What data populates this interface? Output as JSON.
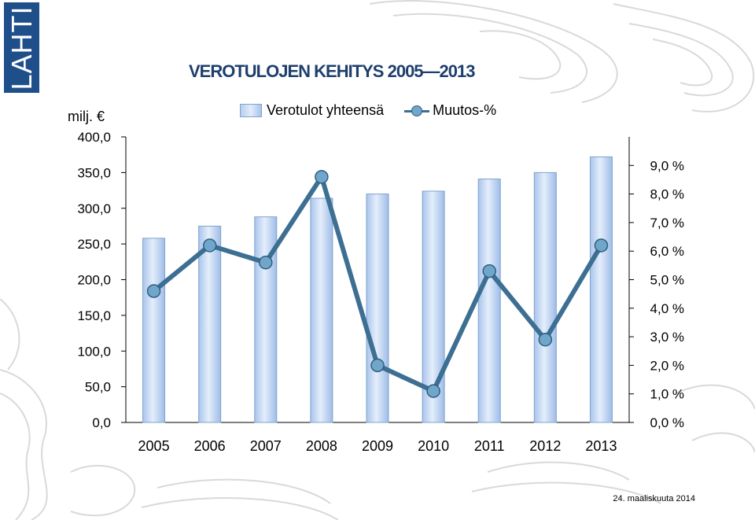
{
  "logo": {
    "text": "LAHTI"
  },
  "title": "VEROTULOJEN KEHITYS 2005—2013",
  "unit_label": "milj. €",
  "footer": {
    "date": "24. maaliskuuta 2014"
  },
  "chart_data": {
    "type": "bar",
    "categories": [
      "2005",
      "2006",
      "2007",
      "2008",
      "2009",
      "2010",
      "2011",
      "2012",
      "2013"
    ],
    "series": [
      {
        "name": "Verotulot yhteensä",
        "type": "bar",
        "axis": "left",
        "values": [
          258,
          275,
          288,
          314,
          320,
          324,
          341,
          350,
          372
        ]
      },
      {
        "name": "Muutos-%",
        "type": "line",
        "axis": "right",
        "values": [
          4.6,
          6.2,
          5.6,
          8.6,
          2.0,
          1.1,
          5.3,
          2.9,
          6.2
        ]
      }
    ],
    "y_left": {
      "min": 0,
      "max": 400,
      "ticks": [
        "0,0",
        "50,0",
        "100,0",
        "150,0",
        "200,0",
        "250,0",
        "300,0",
        "350,0",
        "400,0"
      ]
    },
    "y_right": {
      "min": 0,
      "max": 10,
      "ticks": [
        "0,0 %",
        "1,0 %",
        "2,0 %",
        "3,0 %",
        "4,0 %",
        "5,0 %",
        "6,0 %",
        "7,0 %",
        "8,0 %",
        "9,0 %"
      ]
    },
    "legend_position": "top",
    "grid": false,
    "colors": {
      "bar_fill": "#b9d1f2",
      "bar_edge": "#7fa3cc",
      "line": "#3d6f93",
      "marker": "#6fa6c9"
    }
  }
}
